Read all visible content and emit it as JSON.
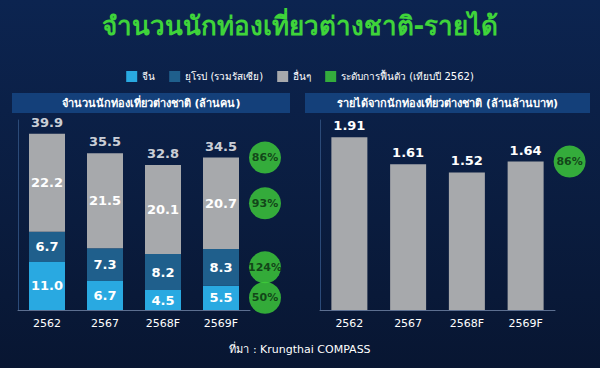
{
  "title": "จำนวนนักท่องเที่ยวต่างชาติ-รายได้",
  "source": "ที่มา : Krungthai COMPASS",
  "chart_data": [
    {
      "type": "bar",
      "title": "จำนวนนักท่องเที่ยวต่างชาติ (ล้านคน)",
      "categories": [
        "2562",
        "2567",
        "2568F",
        "2569F"
      ],
      "stacked": true,
      "data_labels": true,
      "tick_labels": "x",
      "grid": false,
      "legend": "top",
      "ylim": [
        0,
        43
      ],
      "series": [
        {
          "name": "จีน",
          "color": "#29a9e1",
          "values": [
            11.0,
            6.7,
            4.5,
            5.5
          ],
          "value_labels": [
            "11.0",
            "6.7",
            "4.5",
            "5.5"
          ],
          "recovery": 50,
          "recovery_label": "50%"
        },
        {
          "name": "ยุโรป (รวมรัสเซีย)",
          "color": "#1f5f8c",
          "values": [
            6.7,
            7.3,
            8.2,
            8.3
          ],
          "recovery": 124,
          "recovery_label": "124%"
        },
        {
          "name": "อื่นๆ",
          "color": "#a7a9ac",
          "values": [
            22.2,
            21.5,
            20.1,
            20.7
          ],
          "recovery": 93,
          "recovery_label": "93%"
        }
      ],
      "totals": [
        39.9,
        35.5,
        32.8,
        34.5
      ],
      "recovery": {
        "name": "ระดับการฟื้นตัว (เทียบปี 2562)",
        "color": "#3fcf3a",
        "total": 86,
        "total_label": "86%"
      }
    },
    {
      "type": "bar",
      "title": "รายได้จากนักท่องเที่ยวต่างชาติ (ล้านล้านบาท)",
      "categories": [
        "2562",
        "2567",
        "2568F",
        "2569F"
      ],
      "data_labels": true,
      "tick_labels": "x",
      "grid": false,
      "ylim": [
        0,
        2.1
      ],
      "values": [
        1.91,
        1.61,
        1.52,
        1.64
      ],
      "color": "#a7a9ac",
      "recovery": {
        "color": "#3fcf3a",
        "total": 86,
        "total_label": "86%"
      }
    }
  ]
}
